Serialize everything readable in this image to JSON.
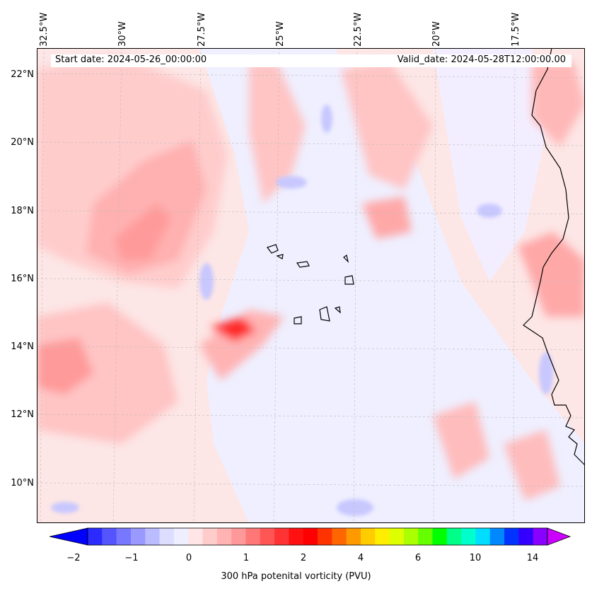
{
  "map": {
    "start_date": "Start date: 2024-05-26_00:00:00",
    "valid_date": "Valid_date: 2024-05-28T12:00:00.00",
    "lon_labels": [
      "32.5°W",
      "30°W",
      "27.5°W",
      "25°W",
      "22.5°W",
      "20°W",
      "17.5°W"
    ],
    "lat_labels": [
      "22°N",
      "20°N",
      "18°N",
      "16°N",
      "14°N",
      "12°N",
      "10°N"
    ]
  },
  "colorbar": {
    "title": "300 hPa potenital vorticity (PVU)",
    "ticks": [
      "−2",
      "−1",
      "0",
      "1",
      "2",
      "4",
      "6",
      "10",
      "14"
    ],
    "colors": [
      "#0000ff",
      "#2b2bff",
      "#5555ff",
      "#7777ff",
      "#9999ff",
      "#bbbbff",
      "#ddddff",
      "#eeeeff",
      "#ffe5e5",
      "#ffcccc",
      "#ffb3b3",
      "#ff9999",
      "#ff7777",
      "#ff5555",
      "#ff3333",
      "#ff1111",
      "#ff0000",
      "#ff3300",
      "#ff6600",
      "#ff9900",
      "#ffcc00",
      "#ffee00",
      "#ddff00",
      "#aaff00",
      "#66ff00",
      "#00ff00",
      "#00ff88",
      "#00ffcc",
      "#00ddff",
      "#0088ff",
      "#0033ff",
      "#3300ff",
      "#8800ff",
      "#cc00ff"
    ]
  },
  "chart_data": {
    "type": "heatmap",
    "title": "",
    "xlabel": "",
    "ylabel": "",
    "x_ticks": [
      "32.5°W",
      "30°W",
      "27.5°W",
      "25°W",
      "22.5°W",
      "20°W",
      "17.5°W"
    ],
    "y_ticks": [
      "22°N",
      "20°N",
      "18°N",
      "16°N",
      "14°N",
      "12°N",
      "10°N"
    ],
    "colorbar_label": "300 hPa potenital vorticity (PVU)",
    "colorbar_ticks": [
      -2,
      -1,
      0,
      1,
      2,
      4,
      6,
      10,
      14
    ],
    "extend": "both"
  }
}
